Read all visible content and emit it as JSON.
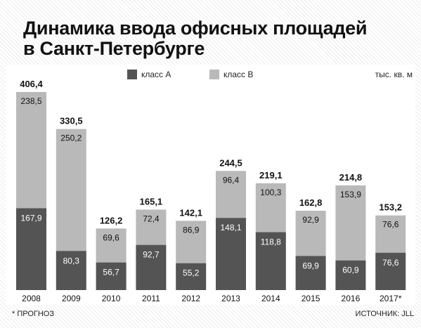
{
  "title_lines": [
    "Динамика ввода офисных площадей",
    "в Санкт-Петербурге"
  ],
  "unit": "тыс. кв. м",
  "footnote": "* ПРОГНОЗ",
  "source": "ИСТОЧНИК: JLL",
  "colors": {
    "class_a": "#545454",
    "class_b": "#b9b9b9"
  },
  "chart_data": {
    "type": "bar",
    "stacked": true,
    "title": "Динамика ввода офисных площадей в Санкт-Петербурге",
    "ylabel": "тыс. кв. м",
    "categories": [
      "2008",
      "2009",
      "2010",
      "2011",
      "2012",
      "2013",
      "2014",
      "2015",
      "2016",
      "2017*"
    ],
    "series": [
      {
        "name": "класс A",
        "values": [
          167.9,
          80.3,
          56.7,
          92.7,
          55.2,
          148.1,
          118.8,
          69.9,
          60.9,
          76.6
        ]
      },
      {
        "name": "класс B",
        "values": [
          238.5,
          250.2,
          69.6,
          72.4,
          86.9,
          96.4,
          100.3,
          92.9,
          153.9,
          76.6
        ]
      }
    ],
    "totals": [
      406.4,
      330.5,
      126.2,
      165.1,
      142.1,
      244.5,
      219.1,
      162.8,
      214.8,
      153.2
    ],
    "value_labels": {
      "class_a": [
        "167,9",
        "80,3",
        "56,7",
        "92,7",
        "55,2",
        "148,1",
        "118,8",
        "69,9",
        "60,9",
        "76,6"
      ],
      "class_b": [
        "238,5",
        "250,2",
        "69,6",
        "72,4",
        "86,9",
        "96,4",
        "100,3",
        "92,9",
        "153,9",
        "76,6"
      ],
      "totals": [
        "406,4",
        "330,5",
        "126,2",
        "165,1",
        "142,1",
        "244,5",
        "219,1",
        "162,8",
        "214,8",
        "153,2"
      ]
    },
    "legend": "top",
    "grid": false,
    "ylim": [
      0,
      406.4
    ]
  }
}
